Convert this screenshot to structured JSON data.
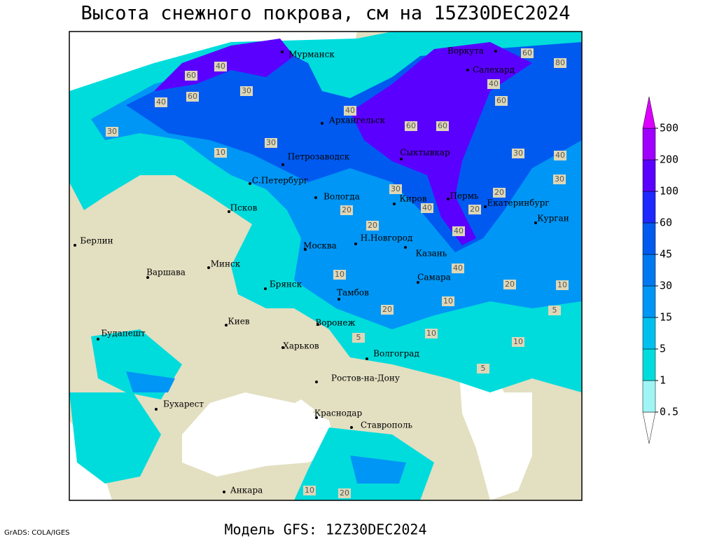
{
  "title": "Высота снежного покрова, см на 15Z30DEC2024",
  "footer": "Модель GFS: 12Z30DEC2024",
  "credit": "GrADS: COLA/IGES",
  "cities": [
    "Мурманск",
    "Воркута",
    "Салехард",
    "Архангельск",
    "Сыктывкар",
    "Петрозаводск",
    "С.Петербург",
    "Вологда",
    "Киров",
    "Пермь",
    "Екатеринбург",
    "Псков",
    "Курган",
    "Берлин",
    "Н.Новгород",
    "Москва",
    "Казань",
    "Минск",
    "Варшава",
    "Брянск",
    "Самара",
    "Тамбов",
    "Киев",
    "Воронеж",
    "Будапешт",
    "Харьков",
    "Волгоград",
    "Ростов-на-Дону",
    "Бухарест",
    "Краснодар",
    "Ставрополь",
    "Анкара"
  ],
  "contour_labels": [
    40,
    60,
    30,
    60,
    40,
    30,
    10,
    30,
    40,
    60,
    60,
    80,
    60,
    40,
    60,
    30,
    40,
    30,
    20,
    20,
    30,
    40,
    20,
    40,
    20,
    10,
    40,
    20,
    10,
    5,
    10,
    5,
    20,
    10,
    5,
    10,
    20,
    10
  ],
  "legend": {
    "levels": [
      0.5,
      1,
      5,
      15,
      30,
      45,
      60,
      100,
      200,
      500
    ],
    "colors": [
      "#ffffff",
      "#9ff5f5",
      "#00dcdc",
      "#00c0f0",
      "#0096f5",
      "#0078f0",
      "#005af0",
      "#1e28ff",
      "#5a00ff",
      "#a000ff",
      "#dc00ff"
    ]
  }
}
